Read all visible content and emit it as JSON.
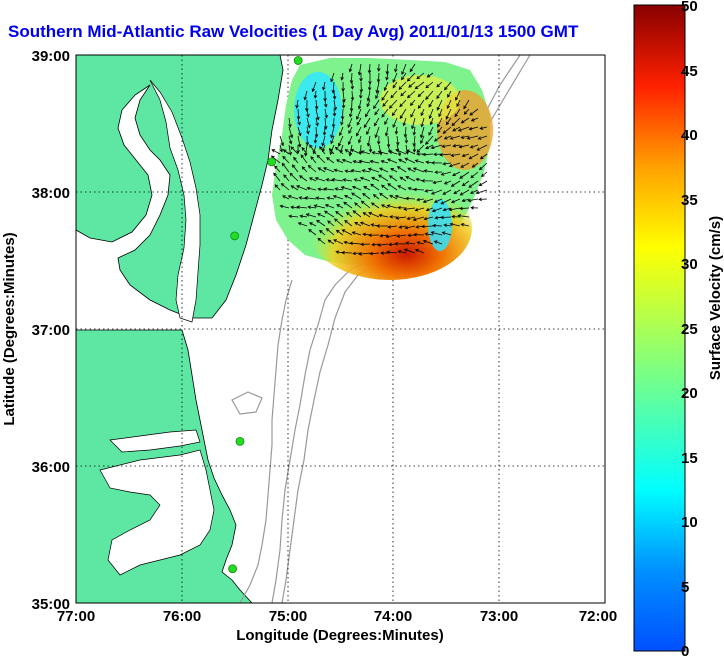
{
  "title": "Southern Mid-Atlantic Raw Velocities (1 Day Avg) 2011/01/13 1500 GMT",
  "map": {
    "xlabel": "Longitude (Degrees:Minutes)",
    "ylabel": "Latitude (Degrees:Minutes)",
    "x_ticks": [
      "77:00",
      "76:00",
      "75:00",
      "74:00",
      "73:00",
      "72:00"
    ],
    "y_ticks": [
      "39:00",
      "38:00",
      "37:00",
      "36:00",
      "35:00"
    ],
    "lon_range": [
      -77,
      -72
    ],
    "lat_range": [
      35,
      39
    ],
    "grid": "dotted",
    "colors": {
      "land": "#5ee7a3",
      "ocean": "#ffffff",
      "coastline": "#000000",
      "bathymetry": "#999999",
      "stations": "#22dd22",
      "arrows": "#000000"
    },
    "stations": [
      {
        "lon": -74.9,
        "lat": 38.96
      },
      {
        "lon": -75.15,
        "lat": 38.22
      },
      {
        "lon": -75.5,
        "lat": 37.68
      },
      {
        "lon": -75.45,
        "lat": 36.18
      },
      {
        "lon": -75.52,
        "lat": 35.25
      }
    ]
  },
  "colorbar": {
    "label": "Surface Velocity (cm/s)",
    "ticks": [
      "0",
      "5",
      "10",
      "15",
      "20",
      "25",
      "30",
      "35",
      "40",
      "45",
      "50"
    ],
    "min": 0,
    "max": 50,
    "colormap": "jet"
  }
}
